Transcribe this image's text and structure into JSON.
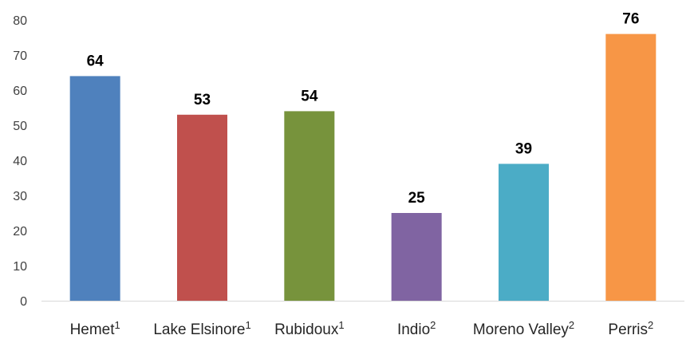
{
  "chart_data": {
    "type": "bar",
    "categories": [
      "Hemet",
      "Lake Elsinore",
      "Rubidoux",
      "Indio",
      "Moreno Valley",
      "Perris"
    ],
    "category_superscripts": [
      "1",
      "1",
      "1",
      "2",
      "2",
      "2"
    ],
    "values": [
      64,
      53,
      54,
      25,
      39,
      76
    ],
    "data_labels": [
      "64",
      "53",
      "54",
      "25",
      "39",
      "76"
    ],
    "colors": [
      "#4f81bd",
      "#c0504d",
      "#77933c",
      "#8064a2",
      "#4bacc6",
      "#f79646"
    ],
    "ylim": [
      0,
      80
    ],
    "yticks": [
      "0",
      "10",
      "20",
      "30",
      "40",
      "50",
      "60",
      "70",
      "80"
    ],
    "title": "",
    "xlabel": "",
    "ylabel": "",
    "grid": false,
    "legend": "none"
  }
}
